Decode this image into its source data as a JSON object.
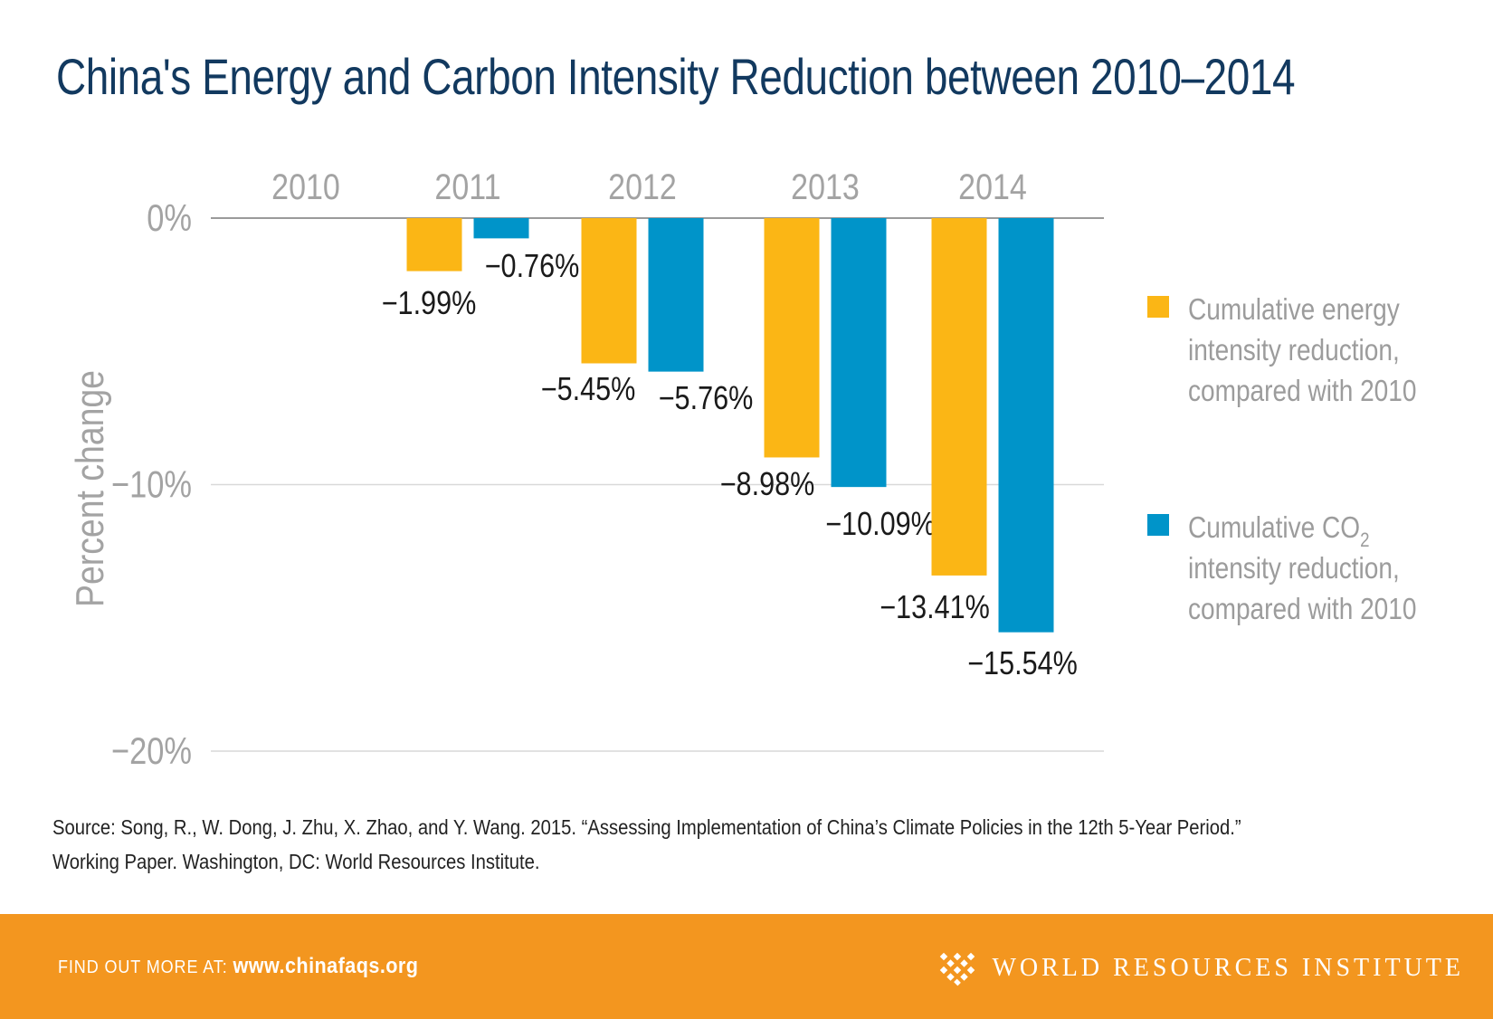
{
  "title": "China's Energy and Carbon Intensity Reduction between 2010–2014",
  "colors": {
    "energy": "#fbb615",
    "co2": "#0094c9",
    "title": "#12395f",
    "footer": "#f3961f"
  },
  "chart_data": {
    "type": "bar",
    "categories": [
      "2010",
      "2011",
      "2012",
      "2013",
      "2014"
    ],
    "series": [
      {
        "name_lines": [
          "Cumulative energy",
          "intensity reduction,",
          "compared with 2010"
        ],
        "values": [
          null,
          -1.99,
          -5.45,
          -8.98,
          -13.41
        ]
      },
      {
        "name_lines": [
          "Cumulative CO",
          "intensity reduction,",
          "compared with 2010"
        ],
        "name_subscript": "2",
        "values": [
          null,
          -0.76,
          -5.76,
          -10.09,
          -15.54
        ]
      }
    ],
    "data_labels": [
      [
        null,
        "−1.99%",
        "−5.45%",
        "−8.98%",
        "−13.41%"
      ],
      [
        null,
        "−0.76%",
        "−5.76%",
        "−10.09%",
        "−15.54%"
      ]
    ],
    "ylabel": "Percent change",
    "yticks": [
      0,
      -10,
      -20
    ],
    "ytick_labels": [
      "0%",
      "−10%",
      "−20%"
    ],
    "ylim": [
      -20,
      0
    ],
    "grid": true,
    "legend_position": "right"
  },
  "source_lines": [
    "Source: Song, R., W. Dong, J. Zhu, X. Zhao, and Y. Wang. 2015. “Assessing Implementation of China’s Climate Policies in the 12th 5-Year Period.”",
    "Working Paper. Washington, DC: World Resources Institute."
  ],
  "footer": {
    "find_out_label": "FIND OUT MORE AT:",
    "url": "www.chinafaqs.org",
    "org_name": "WORLD RESOURCES INSTITUTE",
    "logo_icon": "wri-lattice-icon"
  }
}
